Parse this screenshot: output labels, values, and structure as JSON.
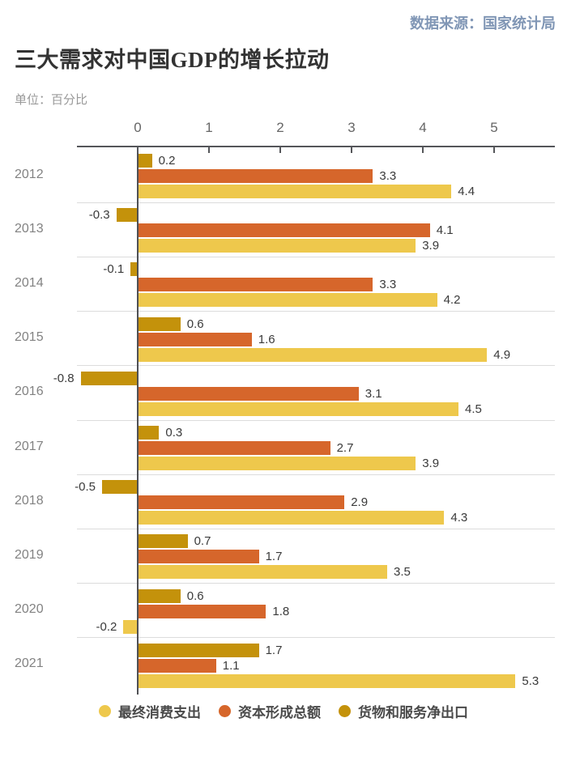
{
  "header": {
    "source": "数据来源：国家统计局",
    "title": "三大需求对中国GDP的增长拉动",
    "subtitle": "单位：百分比"
  },
  "chart_data": {
    "type": "bar",
    "orientation": "horizontal",
    "title": "三大需求对中国GDP的增长拉动",
    "unit": "百分比",
    "categories": [
      "2012",
      "2013",
      "2014",
      "2015",
      "2016",
      "2017",
      "2018",
      "2019",
      "2020",
      "2021"
    ],
    "series": [
      {
        "name": "最终消费支出",
        "color": "#EEC84C",
        "values": [
          4.4,
          3.9,
          4.2,
          4.9,
          4.5,
          3.9,
          4.3,
          3.5,
          -0.2,
          5.3
        ]
      },
      {
        "name": "资本形成总额",
        "color": "#D6662B",
        "values": [
          3.3,
          4.1,
          3.3,
          1.6,
          3.1,
          2.7,
          2.9,
          1.7,
          1.8,
          1.1
        ]
      },
      {
        "name": "货物和服务净出口",
        "color": "#C4920B",
        "values": [
          0.2,
          -0.3,
          -0.1,
          0.6,
          -0.8,
          0.3,
          -0.5,
          0.7,
          0.6,
          1.7
        ]
      }
    ],
    "row_series_order_top_to_bottom": [
      2,
      1,
      0
    ],
    "x_ticks": [
      0,
      1,
      2,
      3,
      4,
      5
    ],
    "xlim": [
      -0.85,
      5.85
    ],
    "value_labels": true,
    "grid": "row-separators",
    "legend_position": "bottom"
  },
  "colors": {
    "background": "#FFFFFF",
    "source_text": "#8096B5",
    "title_text": "#333333",
    "subtitle_text": "#999999",
    "year_label": "#828282",
    "value_label": "#3A3A3A",
    "tick_label": "#666666",
    "axis_line": "#55565A",
    "separator": "#DCDCDC"
  }
}
